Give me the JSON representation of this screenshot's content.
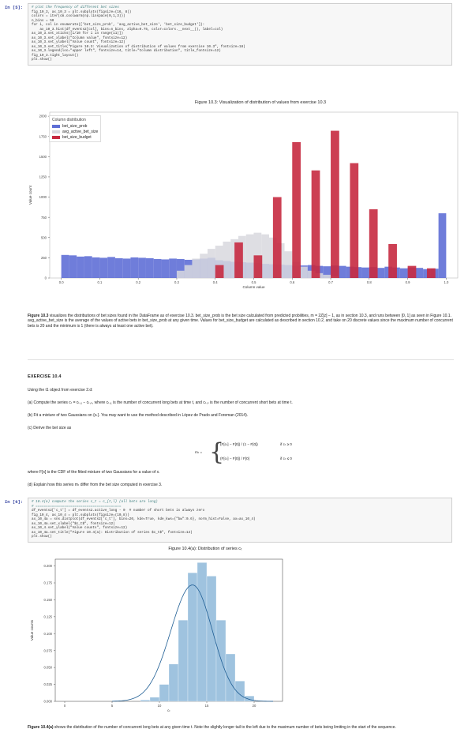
{
  "cell5": {
    "prompt": "In [5]:",
    "lines": [
      {
        "t": "# plot the frequency of different bet sizes",
        "c": true
      },
      {
        "t": "fig_10_3, ax_10_3 = plt.subplots(figsize=(16, 8))",
        "c": false
      },
      {
        "t": "colors = iter(cm.coolwarm(np.linspace(0,1,3)))",
        "c": false
      },
      {
        "t": "n_bins = 50",
        "c": false
      },
      {
        "t": "for i, col in enumerate(['bet_size_prob', 'avg_active_bet_size', 'bet_size_budget']):",
        "c": false
      },
      {
        "t": "    ax_10_3.hist(df_events2[col], bins=n_bins, alpha=0.75, color=colors.__next__(), label=col)",
        "c": false
      },
      {
        "t": "ax_10_3.set_xticks([i/10 for i in range(11)])",
        "c": false
      },
      {
        "t": "ax_10_3.set_xlabel(\"Column value\", fontsize=12)",
        "c": false
      },
      {
        "t": "ax_10_3.set_ylabel(\"Value count\", fontsize=12)",
        "c": false
      },
      {
        "t": "ax_10_3.set_title(\"Figure 10.3: Visualization of distribution of values from exercise 10.3\", fontsize=18)",
        "c": false
      },
      {
        "t": "ax_10_3.legend(loc=\"upper left\", fontsize=14, title=\"Column distribution\", title_fontsize=12)",
        "c": false
      },
      {
        "t": "fig_10_3.tight_layout()",
        "c": false
      },
      {
        "t": "plt.show()",
        "c": false
      }
    ]
  },
  "fig103": {
    "title": "Figure 10.3: Visualization of distribution of values from exercise 10.3",
    "ylabel": "Value count",
    "xlabel": "Column value",
    "legend_title": "Column distribution",
    "yticks": [
      "0",
      "250",
      "500",
      "750",
      "1000",
      "1250",
      "1500",
      "1750",
      "2000"
    ],
    "xticks": [
      "0.0",
      "0.1",
      "0.2",
      "0.3",
      "0.4",
      "0.5",
      "0.6",
      "0.7",
      "0.8",
      "0.9",
      "1.0"
    ]
  },
  "caption103": {
    "lead": "Figure 10.3",
    "text": " visualizes the distributions of bet sizes found in the DataFrame as of exercise 10.3. bet_size_prob is the bet size calculated from predicted probilities, m = 2Z[z] − 1, as in section 10.3, and runs between [0, 1] as seen in Figure 10.1. avg_active_bet_size is the average of the values of active bets in bet_size_prob at any given time. Values for bet_size_budget are calculated as described in section 10.2, and take on 20 discrete values since the maximum number of concurrent bets is 20 and the minimum is 1 (there is always at least one active bet)."
  },
  "exercise": {
    "heading": "EXERCISE 10.4",
    "intro": "Using the t1 object from exercise 2.d:",
    "a": "(a) Compute the series cₜ = cₜ,₁ − cₜ,ₛ, where cₜ,₁ is the number of concurrent long bets at time t, and cₜ,ₛ is the number of concurrent short bets at time t.",
    "b": "(b) Fit a mixture of two Gaussians on {cₜ}. You may want to use the method described in López de Prado and Foreman (2014).",
    "c": "(c) Derive the bet size as",
    "formula_lhs": "mₜ =",
    "formula_top": "(F[cₜ] − F[0]) / (1 − F[0])",
    "formula_top_cond": "if cₜ ≥ 0",
    "formula_bot": "(F[cₜ] − F[0]) / F[0]",
    "formula_bot_cond": "if cₜ ≤ 0",
    "where": "where F[x] is the CDF of the fitted mixture of two Gaussians for a value of x.",
    "d": "(d) Explain how this series mₜ differ from the bet size computed in exercise 3."
  },
  "cell6": {
    "prompt": "In [6]:",
    "lines": [
      {
        "t": "# 10.4(a) compute the series c_t = c_{t,l} (all bets are long)",
        "c": true
      },
      {
        "t": "# ==========================================",
        "c": true
      },
      {
        "t": "df_events2['c_t'] = df_events2.active_long - 0  # number of short bets is always zero",
        "c": false
      },
      {
        "t": "fig_10_4, ax_10_4 = plt.subplots(figsize=(10,8))",
        "c": false
      },
      {
        "t": "ax_10_4a = sns.distplot(df_events2['c_t'], bins=20, kde=True, kde_kws={\"bw\":0.6}, norm_hist=False, ax=ax_10_4)",
        "c": false
      },
      {
        "t": "ax_10_4a.set_xlabel(\"$c_t$\", fontsize=12)",
        "c": false
      },
      {
        "t": "ax_10_4.set_ylabel(\"Value counts\", fontsize=12)",
        "c": false
      },
      {
        "t": "ax_10_4a.set_title(\"Figure 10.4(a): Distribution of series $c_t$\", fontsize=14)",
        "c": false
      },
      {
        "t": "plt.show()",
        "c": false
      }
    ]
  },
  "fig104": {
    "title": "Figure 10.4(a): Distribution of series cₜ",
    "ylabel": "Value counts",
    "xlabel": "cₜ",
    "yticks": [
      "0.000",
      "0.025",
      "0.050",
      "0.075",
      "0.100",
      "0.125",
      "0.150",
      "0.175",
      "0.200"
    ],
    "xticks": [
      "0",
      "5",
      "10",
      "15",
      "20"
    ]
  },
  "caption104": {
    "lead": "Figure 10.4(a)",
    "text": " shows the distribution of the number of concurrent long bets at any given time t. Note the slightly longer tail to the left due to the maximum number of bets being limiting in the start of the sequence."
  },
  "chart_data": [
    {
      "type": "bar",
      "title": "Figure 10.3: Visualization of distribution of values from exercise 10.3",
      "xlabel": "Column value",
      "ylabel": "Value count",
      "xlim": [
        -0.03,
        1.03
      ],
      "ylim": [
        0,
        2050
      ],
      "grid": false,
      "legend": "upper-left",
      "series": [
        {
          "name": "bet_size_prob",
          "color": "#5f6fd6",
          "bins": [
            0.0,
            0.02,
            0.04,
            0.06,
            0.08,
            0.1,
            0.12,
            0.14,
            0.16,
            0.18,
            0.2,
            0.22,
            0.24,
            0.26,
            0.28,
            0.3,
            0.32,
            0.34,
            0.36,
            0.38,
            0.4,
            0.42,
            0.44,
            0.46,
            0.48,
            0.5,
            0.52,
            0.54,
            0.56,
            0.58,
            0.6,
            0.62,
            0.64,
            0.66,
            0.68,
            0.7,
            0.72,
            0.74,
            0.76,
            0.78,
            0.8,
            0.82,
            0.84,
            0.86,
            0.88,
            0.9,
            0.92,
            0.94,
            0.96,
            0.98
          ],
          "values": [
            285,
            280,
            265,
            270,
            255,
            250,
            260,
            245,
            240,
            255,
            250,
            245,
            235,
            230,
            240,
            235,
            225,
            230,
            240,
            250,
            220,
            210,
            200,
            195,
            190,
            185,
            175,
            170,
            165,
            160,
            150,
            155,
            160,
            150,
            145,
            155,
            150,
            140,
            135,
            130,
            135,
            125,
            140,
            130,
            120,
            130,
            125,
            110,
            115,
            800
          ]
        },
        {
          "name": "avg_active_bet_size",
          "color": "#d8d8de",
          "bins": [
            0.3,
            0.32,
            0.34,
            0.36,
            0.38,
            0.4,
            0.42,
            0.44,
            0.46,
            0.48,
            0.5,
            0.52,
            0.54,
            0.56,
            0.58,
            0.6,
            0.62,
            0.64,
            0.66,
            0.68,
            0.7
          ],
          "values": [
            90,
            160,
            240,
            300,
            360,
            400,
            450,
            480,
            520,
            540,
            560,
            540,
            500,
            430,
            330,
            200,
            140,
            90,
            60,
            40,
            20
          ]
        },
        {
          "name": "bet_size_budget",
          "color": "#c72a40",
          "bins": [
            0.4,
            0.45,
            0.5,
            0.55,
            0.6,
            0.65,
            0.7,
            0.75,
            0.8,
            0.85,
            0.9,
            0.95
          ],
          "values": [
            160,
            440,
            280,
            1000,
            1680,
            1330,
            1820,
            1420,
            850,
            420,
            150,
            120
          ]
        }
      ]
    },
    {
      "type": "bar",
      "title": "Figure 10.4(a): Distribution of series cₜ",
      "xlabel": "cₜ",
      "ylabel": "Value counts",
      "xlim": [
        -1,
        23
      ],
      "ylim": [
        0,
        0.21
      ],
      "grid": false,
      "x": [
        8,
        9,
        10,
        11,
        12,
        13,
        14,
        15,
        16,
        17,
        18,
        19
      ],
      "values": [
        0.002,
        0.006,
        0.025,
        0.055,
        0.12,
        0.19,
        0.205,
        0.185,
        0.12,
        0.07,
        0.03,
        0.008
      ],
      "kde_peak": {
        "x": 13.5,
        "y": 0.172
      }
    }
  ]
}
